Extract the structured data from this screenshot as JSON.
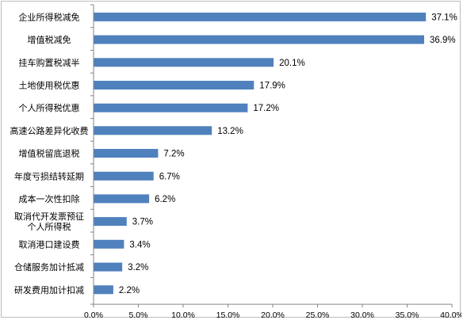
{
  "chart_data": {
    "type": "bar",
    "orientation": "horizontal",
    "categories": [
      "企业所得税减免",
      "增值税减免",
      "挂车购置税减半",
      "土地使用税优惠",
      "个人所得税优惠",
      "高速公路差异化收费",
      "增值税留底退税",
      "年度亏损结转延期",
      "成本一次性扣除",
      "取消代开发票预征\n个人所得税",
      "取消港口建设费",
      "仓储服务加计抵减",
      "研发费用加计扣减"
    ],
    "values": [
      37.1,
      36.9,
      20.1,
      17.9,
      17.2,
      13.2,
      7.2,
      6.7,
      6.2,
      3.7,
      3.4,
      3.2,
      2.2
    ],
    "value_labels": [
      "37.1%",
      "36.9%",
      "20.1%",
      "17.9%",
      "17.2%",
      "13.2%",
      "7.2%",
      "6.7%",
      "6.2%",
      "3.7%",
      "3.4%",
      "3.2%",
      "2.2%"
    ],
    "xlim": [
      0,
      40
    ],
    "xticks": [
      "0.0%",
      "5.0%",
      "10.0%",
      "15.0%",
      "20.0%",
      "25.0%",
      "30.0%",
      "35.0%",
      "40.0%"
    ],
    "title": "",
    "xlabel": "",
    "ylabel": "",
    "grid": false,
    "legend": "none",
    "bar_color": "#4f81bd"
  }
}
